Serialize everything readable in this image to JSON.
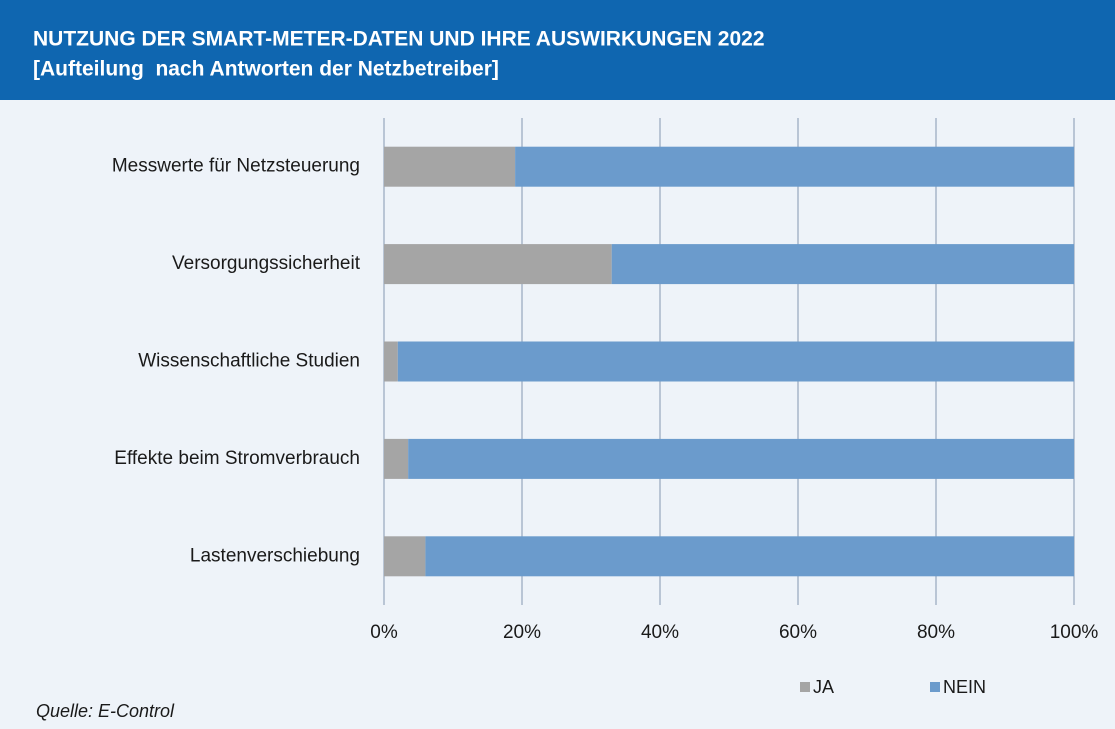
{
  "chart_data": {
    "type": "stacked-barh",
    "title": "NUTZUNG DER SMART-METER-DATEN UND IHRE AUSWIRKUNGEN 2022",
    "subtitle": "[Aufteilung  nach Antworten der Netzbetreiber]",
    "source": "Quelle: E-Control",
    "categories": [
      "Messwerte für Netzsteuerung",
      "Versorgungssicherheit",
      "Wissenschaftliche Studien",
      "Effekte beim Stromverbrauch",
      "Lastenverschiebung"
    ],
    "series": [
      {
        "name": "JA",
        "color": "#a5a5a5",
        "values": [
          19,
          33,
          2,
          3.5,
          6
        ]
      },
      {
        "name": "NEIN",
        "color": "#6b9bcc",
        "values": [
          81,
          67,
          98,
          96.5,
          94
        ]
      }
    ],
    "xlim": [
      0,
      100
    ],
    "xticks": [
      {
        "value": 0,
        "label": "0%"
      },
      {
        "value": 20,
        "label": "20%"
      },
      {
        "value": 40,
        "label": "40%"
      },
      {
        "value": 60,
        "label": "60%"
      },
      {
        "value": 80,
        "label": "80%"
      },
      {
        "value": 100,
        "label": "100%"
      }
    ],
    "grid": true
  }
}
